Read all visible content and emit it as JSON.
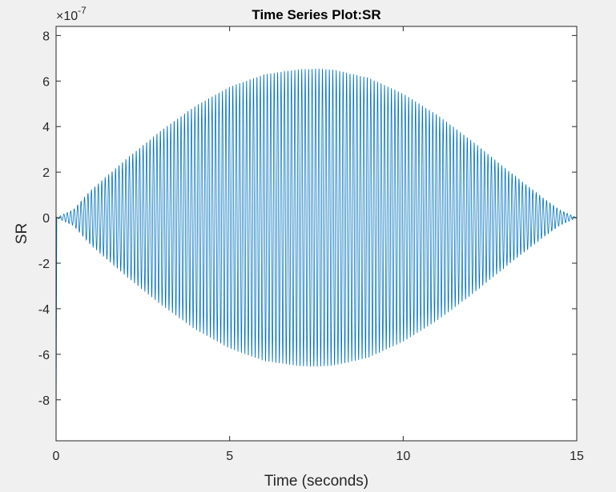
{
  "chart_data": {
    "type": "line",
    "title": "Time Series Plot:SR",
    "xlabel": "Time (seconds)",
    "ylabel": "SR",
    "xlim": [
      0,
      15
    ],
    "ylim": [
      -9.8,
      8.4
    ],
    "y_scale_exponent": "×10",
    "y_scale_power": "-7",
    "x_ticks": [
      0,
      5,
      10,
      15
    ],
    "x_tick_labels": [
      "0",
      "5",
      "10",
      "15"
    ],
    "y_ticks": [
      8,
      6,
      4,
      2,
      0,
      -2,
      -4,
      -6,
      -8
    ],
    "y_tick_labels": [
      "8",
      "6",
      "4",
      "2",
      "0",
      "-2",
      "-4",
      "-6",
      "-8"
    ],
    "grid": false,
    "series": [
      {
        "color": "#0072bd",
        "initial_spike": -9.8,
        "carrier_cycles": 151,
        "envelope_t": [
          0,
          0.5,
          1,
          2,
          3,
          4,
          5,
          6,
          7,
          7.5,
          8,
          9,
          10,
          11,
          12,
          13,
          14,
          14.5,
          15
        ],
        "envelope_amplitude": [
          0,
          0.35,
          1.2,
          2.55,
          3.8,
          4.9,
          5.75,
          6.3,
          6.52,
          6.55,
          6.5,
          6.15,
          5.45,
          4.5,
          3.35,
          2.1,
          0.9,
          0.35,
          0
        ]
      }
    ]
  }
}
